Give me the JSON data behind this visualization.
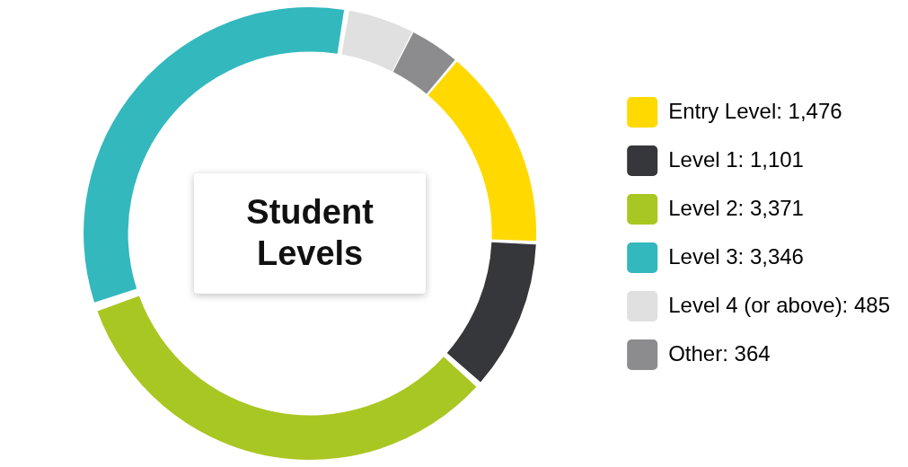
{
  "chart_data": {
    "type": "donut",
    "title": "Student Levels",
    "categories": [
      "Entry Level",
      "Level 1",
      "Level 2",
      "Level 3",
      "Level 4 (or above)",
      "Other"
    ],
    "values": [
      1476,
      1101,
      3371,
      3346,
      485,
      364
    ],
    "value_labels": [
      "1,476",
      "1,101",
      "3,371",
      "3,346",
      "485",
      "364"
    ],
    "colors": [
      "#ffd900",
      "#36373b",
      "#a9c722",
      "#33b8be",
      "#e0e0e0",
      "#8c8c8e"
    ],
    "legend": "right"
  }
}
